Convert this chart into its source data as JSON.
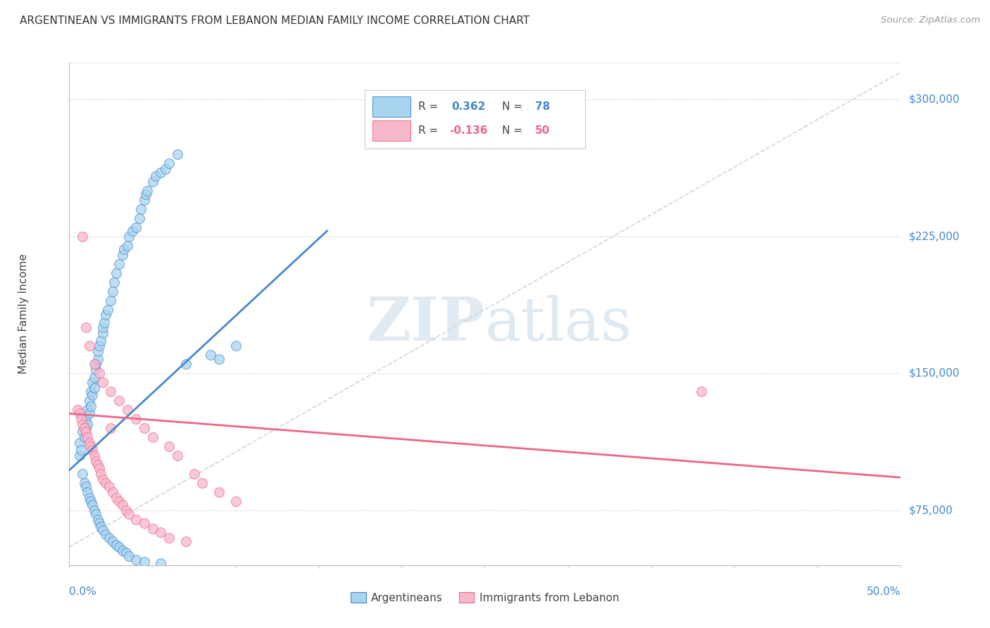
{
  "title": "ARGENTINEAN VS IMMIGRANTS FROM LEBANON MEDIAN FAMILY INCOME CORRELATION CHART",
  "source": "Source: ZipAtlas.com",
  "ylabel": "Median Family Income",
  "yticks": [
    75000,
    150000,
    225000,
    300000
  ],
  "ytick_labels": [
    "$75,000",
    "$150,000",
    "$225,000",
    "$300,000"
  ],
  "xlim": [
    0.0,
    0.5
  ],
  "ylim": [
    45000,
    320000
  ],
  "color_blue": "#A8D4F0",
  "color_pink": "#F8B8CC",
  "color_line_blue": "#4488CC",
  "color_line_pink": "#EE6688",
  "color_diag": "#BBCCDD",
  "watermark_zip": "ZIP",
  "watermark_atlas": "atlas",
  "background_color": "#FFFFFF",
  "grid_color": "#CCCCCC",
  "blue_line_x": [
    0.0,
    0.155
  ],
  "blue_line_y": [
    97000,
    228000
  ],
  "pink_line_x": [
    0.0,
    0.5
  ],
  "pink_line_y": [
    128000,
    93000
  ],
  "diag_line_x": [
    0.0,
    0.5
  ],
  "diag_line_y": [
    55000,
    315000
  ],
  "blue_x": [
    0.006,
    0.006,
    0.007,
    0.008,
    0.009,
    0.01,
    0.01,
    0.011,
    0.011,
    0.012,
    0.012,
    0.013,
    0.013,
    0.014,
    0.014,
    0.015,
    0.015,
    0.016,
    0.016,
    0.017,
    0.017,
    0.018,
    0.019,
    0.02,
    0.02,
    0.021,
    0.022,
    0.023,
    0.025,
    0.026,
    0.027,
    0.028,
    0.03,
    0.032,
    0.033,
    0.035,
    0.036,
    0.038,
    0.04,
    0.042,
    0.043,
    0.045,
    0.046,
    0.047,
    0.05,
    0.052,
    0.055,
    0.058,
    0.06,
    0.065,
    0.008,
    0.009,
    0.01,
    0.011,
    0.012,
    0.013,
    0.014,
    0.015,
    0.016,
    0.017,
    0.018,
    0.019,
    0.02,
    0.022,
    0.024,
    0.026,
    0.028,
    0.03,
    0.032,
    0.034,
    0.036,
    0.04,
    0.045,
    0.055,
    0.07,
    0.085,
    0.09,
    0.1
  ],
  "blue_y": [
    105000,
    112000,
    108000,
    118000,
    115000,
    120000,
    125000,
    122000,
    130000,
    128000,
    135000,
    132000,
    140000,
    138000,
    145000,
    142000,
    148000,
    152000,
    155000,
    158000,
    162000,
    165000,
    168000,
    172000,
    175000,
    178000,
    182000,
    185000,
    190000,
    195000,
    200000,
    205000,
    210000,
    215000,
    218000,
    220000,
    225000,
    228000,
    230000,
    235000,
    240000,
    245000,
    248000,
    250000,
    255000,
    258000,
    260000,
    262000,
    265000,
    270000,
    95000,
    90000,
    88000,
    85000,
    82000,
    80000,
    78000,
    75000,
    73000,
    70000,
    68000,
    66000,
    64000,
    62000,
    60000,
    58000,
    56000,
    55000,
    53000,
    52000,
    50000,
    48000,
    47000,
    46000,
    155000,
    160000,
    158000,
    165000
  ],
  "pink_x": [
    0.005,
    0.006,
    0.007,
    0.008,
    0.009,
    0.01,
    0.011,
    0.012,
    0.013,
    0.014,
    0.015,
    0.016,
    0.017,
    0.018,
    0.019,
    0.02,
    0.022,
    0.024,
    0.026,
    0.028,
    0.03,
    0.032,
    0.034,
    0.036,
    0.04,
    0.045,
    0.05,
    0.055,
    0.06,
    0.07,
    0.008,
    0.01,
    0.012,
    0.015,
    0.018,
    0.02,
    0.025,
    0.03,
    0.035,
    0.04,
    0.045,
    0.05,
    0.06,
    0.065,
    0.075,
    0.08,
    0.09,
    0.1,
    0.38,
    0.025
  ],
  "pink_y": [
    130000,
    128000,
    125000,
    122000,
    120000,
    118000,
    115000,
    112000,
    110000,
    108000,
    105000,
    102000,
    100000,
    98000,
    95000,
    92000,
    90000,
    88000,
    85000,
    82000,
    80000,
    78000,
    75000,
    73000,
    70000,
    68000,
    65000,
    63000,
    60000,
    58000,
    225000,
    175000,
    165000,
    155000,
    150000,
    145000,
    140000,
    135000,
    130000,
    125000,
    120000,
    115000,
    110000,
    105000,
    95000,
    90000,
    85000,
    80000,
    140000,
    120000
  ]
}
